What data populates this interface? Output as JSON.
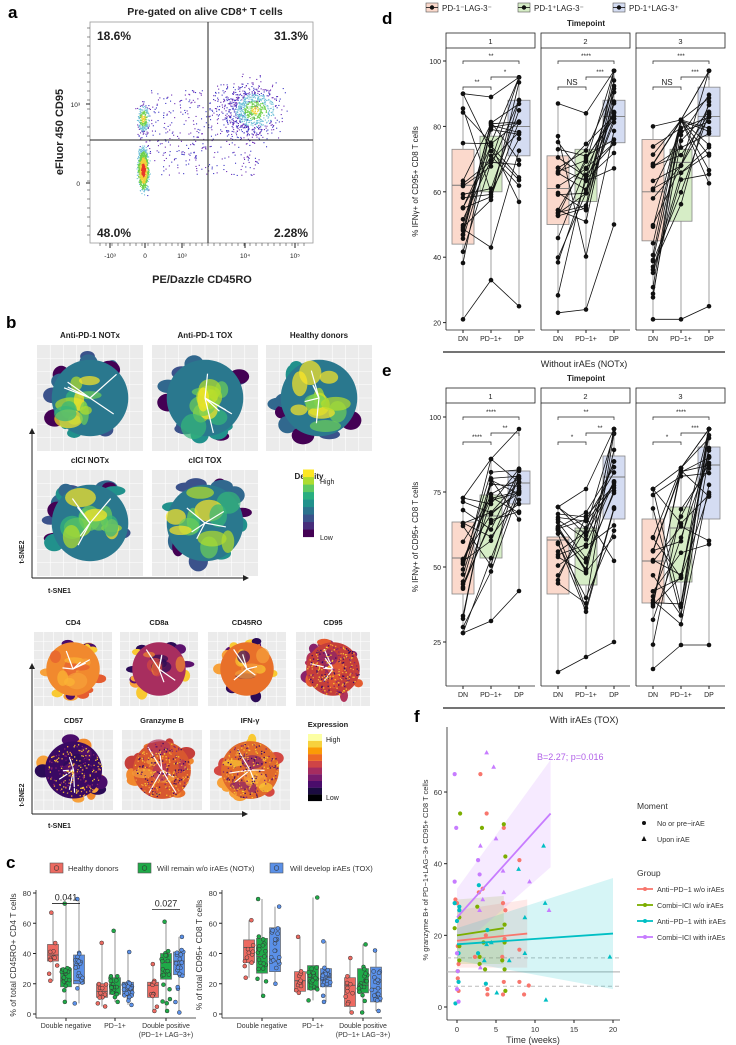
{
  "panel_labels": {
    "a": "a",
    "b": "b",
    "c": "c",
    "d": "d",
    "e": "e",
    "f": "f"
  },
  "colors": {
    "hd": "#ec6a61",
    "notx": "#1faa48",
    "tox": "#5a90e8",
    "dn": "#fbd9cc",
    "pd1": "#d6edc6",
    "dp": "#d4dcf2",
    "f_red": "#f8766d",
    "f_green": "#7cae00",
    "f_cyan": "#00bfc4",
    "f_purple": "#c77cff"
  },
  "chart_data": [
    {
      "id": "a",
      "type": "scatter",
      "title": "Pre-gated on alive CD8⁺ T cells",
      "xlabel": "PE/Dazzle CD45RO",
      "ylabel": "eFluor 450 CD95",
      "xticks": [
        "-10³",
        "0",
        "10³",
        "10⁴",
        "10⁵"
      ],
      "yticks": [
        "10³",
        "0"
      ],
      "quadrants": {
        "upper_left": "18.6%",
        "upper_right": "31.3%",
        "lower_left": "48.0%",
        "lower_right": "2.28%"
      }
    },
    {
      "id": "b_density",
      "type": "heatmap",
      "panels": [
        "Anti-PD-1 NOTx",
        "Anti-PD-1 TOX",
        "Healthy donors",
        "cICI NOTx",
        "cICI TOX"
      ],
      "legend_title": "Density",
      "legend_high": "High",
      "legend_low": "Low",
      "xlabel": "t-SNE1",
      "ylabel": "t-SNE2"
    },
    {
      "id": "b_expression",
      "type": "heatmap",
      "panels": [
        "CD4",
        "CD8a",
        "CD45RO",
        "CD95",
        "CD57",
        "Granzyme B",
        "IFN-γ"
      ],
      "legend_title": "Expression",
      "legend_high": "High",
      "legend_low": "Low",
      "xlabel": "t-SNE1",
      "ylabel": "t-SNE2"
    },
    {
      "id": "c",
      "type": "box",
      "legend": [
        "Healthy donors",
        "Will remain w/o irAEs (NOTx)",
        "Will develop irAEs (TOX)"
      ],
      "categories": [
        "Double negative",
        "PD−1+",
        "Double positive",
        "(PD−1+ LAG−3+)"
      ],
      "ylim": [
        0,
        80
      ],
      "yticks": [
        "0",
        "20",
        "40",
        "60",
        "80"
      ],
      "plots": [
        {
          "ylabel": "% of total CD45RO+ CD4 T cells",
          "stats_min_q1_med_q3_max": [
            [
              [
                22,
                35,
                39,
                46,
                67
              ],
              [
                8,
                18,
                22,
                30,
                73
              ],
              [
                7,
                20,
                22,
                39,
                76
              ]
            ],
            [
              [
                5,
                11,
                15,
                20,
                47
              ],
              [
                8,
                13,
                18,
                24,
                55
              ],
              [
                6,
                12,
                16,
                21,
                41
              ]
            ],
            [
              [
                2,
                11,
                19,
                21,
                33
              ],
              [
                2,
                23,
                34,
                40,
                61
              ],
              [
                1,
                26,
                35,
                41,
                51
              ]
            ]
          ],
          "pvalues": [
            {
              "category": 0,
              "label": "0.041"
            },
            {
              "category": 2,
              "label": "0.027"
            }
          ]
        },
        {
          "ylabel": "% of total CD95+ CD8 T cells",
          "stats_min_q1_med_q3_max": [
            [
              [
                24,
                34,
                44,
                49,
                62
              ],
              [
                12,
                27,
                38,
                50,
                76
              ],
              [
                20,
                28,
                35,
                57,
                71
              ]
            ],
            [
              [
                14,
                15,
                22,
                28,
                51
              ],
              [
                9,
                16,
                24,
                32,
                77
              ],
              [
                8,
                18,
                24,
                30,
                48
              ]
            ],
            [
              [
                1,
                5,
                19,
                24,
                37
              ],
              [
                1,
                14,
                19,
                30,
                46
              ],
              [
                2,
                8,
                17,
                31,
                42
              ]
            ]
          ],
          "pvalues": []
        }
      ]
    },
    {
      "id": "d",
      "type": "box",
      "legend": [
        "PD-1⁻LAG-3⁻",
        "PD-1⁺LAG-3⁻",
        "PD-1⁺LAG-3⁺"
      ],
      "facet_title": "Timepoint",
      "facets": [
        "1",
        "2",
        "3"
      ],
      "categories": [
        "DN",
        "PD−1+",
        "DP"
      ],
      "ylabel": "% IFNγ+ of CD95+ CD8 T cells",
      "yticks": [
        "20",
        "40",
        "60",
        "80",
        "100"
      ],
      "caption": "Without irAEs (NOTx)",
      "stats_min_q1_med_q3_max": [
        [
          [
            21,
            44,
            62,
            73,
            90
          ],
          [
            33,
            60,
            69,
            77,
            89
          ],
          [
            25,
            71,
            80,
            88,
            95
          ]
        ],
        [
          [
            23,
            50,
            61,
            71,
            87
          ],
          [
            24,
            57,
            64,
            73,
            84
          ],
          [
            50,
            75,
            83,
            88,
            97
          ]
        ],
        [
          [
            21,
            45,
            60,
            76,
            80
          ],
          [
            21,
            51,
            69,
            73,
            82
          ],
          [
            25,
            77,
            83,
            92,
            97
          ]
        ]
      ],
      "significance": [
        [
          "**",
          "**",
          "*"
        ],
        [
          "****",
          "NS",
          "***"
        ],
        [
          "***",
          "NS",
          "***"
        ]
      ]
    },
    {
      "id": "e",
      "type": "box",
      "facet_title": "Timepoint",
      "facets": [
        "1",
        "2",
        "3"
      ],
      "categories": [
        "DN",
        "PD−1+",
        "DP"
      ],
      "ylabel": "% IFNγ+ of CD95+ CD8 T cells",
      "yticks": [
        "25",
        "50",
        "75",
        "100"
      ],
      "caption": "With irAEs (TOX)",
      "stats_min_q1_med_q3_max": [
        [
          [
            28,
            41,
            53,
            65,
            73
          ],
          [
            32,
            53,
            67,
            74,
            86
          ],
          [
            42,
            71,
            78,
            82,
            96
          ]
        ],
        [
          [
            15,
            41,
            59,
            60,
            70
          ],
          [
            20,
            44,
            62,
            63,
            76
          ],
          [
            25,
            66,
            80,
            87,
            96
          ]
        ],
        [
          [
            16,
            38,
            52,
            66,
            76
          ],
          [
            24,
            45,
            63,
            70,
            83
          ],
          [
            24,
            66,
            84,
            90,
            96
          ]
        ]
      ],
      "significance": [
        [
          "****",
          "****",
          "**"
        ],
        [
          "**",
          "*",
          "**"
        ],
        [
          "****",
          "*",
          "***"
        ]
      ]
    },
    {
      "id": "f",
      "type": "scatter",
      "xlabel": "Time (weeks)",
      "ylabel": "% granzyme B+ of PD−1+LAG−3+ CD95+ CD8 T cells",
      "xticks": [
        "0",
        "5",
        "10",
        "15",
        "20"
      ],
      "yticks": [
        "0",
        "20",
        "40",
        "60"
      ],
      "annotation": "B=2.27; p=0.016",
      "moment_title": "Moment",
      "moments": [
        "No or pre−irAE",
        "Upon irAE"
      ],
      "group_title": "Group",
      "groups": [
        {
          "name": "Anti−PD−1 w/o irAEs",
          "fit": [
            [
              0,
              18.5
            ],
            [
              9,
              20.5
            ]
          ],
          "band": [
            [
              0,
              11,
              27
            ],
            [
              9,
              11,
              30
            ]
          ],
          "points": [
            [
              -0.2,
              30,
              0
            ],
            [
              0,
              29,
              0
            ],
            [
              0.1,
              17,
              0
            ],
            [
              0.2,
              12,
              0
            ],
            [
              0.1,
              8,
              0
            ],
            [
              0.2,
              4.5,
              0
            ],
            [
              2.3,
              14,
              0
            ],
            [
              2.8,
              32,
              0
            ],
            [
              3.0,
              65,
              0
            ],
            [
              3.3,
              33,
              0
            ],
            [
              3.7,
              20,
              0
            ],
            [
              3.8,
              54,
              0
            ],
            [
              3.9,
              5,
              0
            ],
            [
              3.9,
              3.5,
              0
            ],
            [
              5.9,
              29,
              0
            ],
            [
              6.0,
              50,
              0
            ],
            [
              6.1,
              19,
              0
            ],
            [
              6.2,
              27,
              0
            ],
            [
              6.0,
              7,
              0
            ],
            [
              5.8,
              14,
              0
            ],
            [
              5.9,
              3.5,
              0
            ],
            [
              8.0,
              41,
              0
            ],
            [
              8.0,
              16,
              0
            ],
            [
              8.0,
              7,
              0
            ],
            [
              8.6,
              3.5,
              0
            ],
            [
              9.2,
              6,
              0
            ]
          ]
        },
        {
          "name": "Combi−ICI w/o irAEs",
          "fit": [
            [
              0,
              20
            ],
            [
              6,
              22
            ]
          ],
          "band": [
            [
              0,
              12,
              30
            ],
            [
              6,
              12,
              31
            ]
          ],
          "points": [
            [
              -0.3,
              22,
              0
            ],
            [
              0.1,
              10,
              0
            ],
            [
              0.3,
              25,
              0
            ],
            [
              0.3,
              17,
              0
            ],
            [
              0.3,
              13,
              0
            ],
            [
              0.4,
              54,
              0
            ],
            [
              2.6,
              28,
              0
            ],
            [
              2.9,
              14,
              0
            ],
            [
              2.9,
              12,
              0
            ],
            [
              3.2,
              50,
              0
            ],
            [
              3.4,
              18,
              0
            ],
            [
              3.6,
              10.5,
              0
            ],
            [
              5.8,
              13,
              0
            ],
            [
              6.0,
              51,
              0
            ],
            [
              6.1,
              23,
              0
            ],
            [
              6.1,
              18,
              0
            ],
            [
              6.1,
              10.5,
              0
            ],
            [
              6.2,
              42,
              0
            ],
            [
              6.2,
              4.5,
              0
            ]
          ]
        },
        {
          "name": "Anti−PD−1 with irAEs",
          "fit": [
            [
              0,
              17.5
            ],
            [
              20,
              20.5
            ]
          ],
          "band": [
            [
              0,
              13,
              22
            ],
            [
              20,
              5,
              36
            ]
          ],
          "points": [
            [
              -0.3,
              29,
              0
            ],
            [
              -0.2,
              1,
              0
            ],
            [
              0,
              24,
              0
            ],
            [
              0.2,
              15,
              0
            ],
            [
              0.2,
              7,
              0
            ],
            [
              0.3,
              27,
              0
            ],
            [
              0.3,
              28,
              0
            ],
            [
              2.7,
              15,
              0
            ],
            [
              2.8,
              34,
              0
            ],
            [
              3.5,
              13,
              1
            ],
            [
              3.7,
              6.5,
              0
            ],
            [
              3.8,
              17.5,
              1
            ],
            [
              3.9,
              21.5,
              0
            ],
            [
              4.4,
              18,
              1
            ],
            [
              5.1,
              4,
              1
            ],
            [
              6.7,
              13,
              1
            ],
            [
              7.9,
              38.5,
              1
            ],
            [
              8.7,
              25,
              1
            ],
            [
              8.7,
              15,
              1
            ],
            [
              11.1,
              45,
              1
            ],
            [
              11.3,
              29,
              1
            ],
            [
              11.4,
              2,
              1
            ],
            [
              19.6,
              14,
              1
            ]
          ]
        },
        {
          "name": "Combi−ICI with irAEs",
          "fit": [
            [
              0,
              25
            ],
            [
              12,
              54
            ]
          ],
          "band": [
            [
              0,
              16,
              33
            ],
            [
              12,
              39,
              69
            ]
          ],
          "points": [
            [
              -0.3,
              65,
              0
            ],
            [
              -0.1,
              50,
              0
            ],
            [
              -0.3,
              35,
              0
            ],
            [
              2.7,
              41,
              0
            ],
            [
              2.9,
              37,
              0
            ],
            [
              3.0,
              45,
              1
            ],
            [
              3.8,
              71,
              1
            ],
            [
              4.7,
              67,
              1
            ],
            [
              5.0,
              47,
              1
            ],
            [
              5.9,
              38,
              1
            ],
            [
              6.0,
              32,
              1
            ],
            [
              9.3,
              35,
              1
            ],
            [
              11.8,
              27,
              1
            ],
            [
              2.9,
              27,
              1
            ],
            [
              3.3,
              30,
              1
            ],
            [
              0,
              15,
              0
            ],
            [
              0,
              5,
              0
            ],
            [
              0.2,
              1.5,
              0
            ],
            [
              0.1,
              10,
              0
            ],
            [
              3,
              11,
              1
            ]
          ]
        }
      ],
      "reference_lines": {
        "solid": 9.8,
        "dashed": [
          13.7,
          5.8
        ]
      }
    }
  ]
}
